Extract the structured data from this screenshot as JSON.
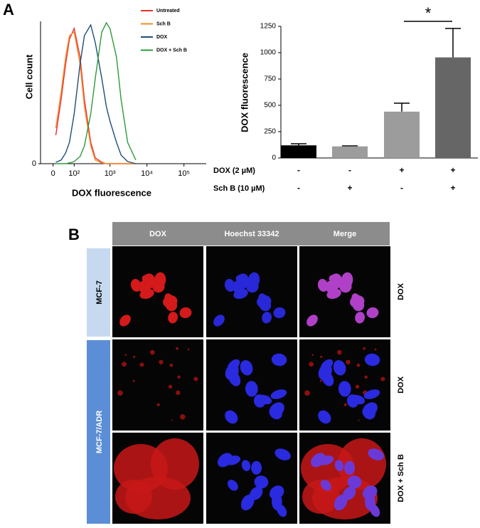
{
  "panel_labels": {
    "a": "A",
    "b": "B"
  },
  "chart_data": [
    {
      "type": "line",
      "xscale": "biexponential",
      "ylabel": "Cell count",
      "xlabel": "DOX fluorescence",
      "x": [
        10,
        30,
        50,
        70,
        100,
        150,
        200,
        300,
        400,
        600,
        800,
        1000,
        1500,
        2000,
        3000,
        5000
      ],
      "series": [
        {
          "name": "Untreated",
          "color": "#e8302a",
          "values": [
            40,
            90,
            140,
            175,
            190,
            150,
            90,
            30,
            8,
            2,
            0,
            0,
            0,
            0,
            0,
            0
          ]
        },
        {
          "name": "Sch B",
          "color": "#f58a2a",
          "values": [
            50,
            100,
            150,
            180,
            185,
            140,
            80,
            25,
            5,
            1,
            0,
            0,
            0,
            0,
            0,
            0
          ]
        },
        {
          "name": "DOX",
          "color": "#1f4e79",
          "values": [
            2,
            5,
            15,
            30,
            70,
            140,
            180,
            195,
            170,
            120,
            80,
            60,
            30,
            12,
            3,
            0
          ]
        },
        {
          "name": "DOX + Sch B",
          "color": "#2e9a3a",
          "values": [
            0,
            0,
            0,
            1,
            3,
            10,
            25,
            70,
            120,
            185,
            198,
            190,
            150,
            90,
            30,
            5
          ]
        }
      ],
      "xlim": [
        -50,
        400000
      ],
      "xticks": [
        0,
        {
          "value": 100,
          "label": "10²"
        },
        {
          "value": 1000,
          "label": "10³"
        },
        {
          "value": 10000,
          "label": "10⁴"
        },
        {
          "value": 100000,
          "label": "10⁵"
        }
      ],
      "ylim": [
        0,
        200
      ],
      "yticks": [
        0
      ]
    },
    {
      "type": "bar",
      "ylabel": "DOX fluorescence",
      "values": [
        120,
        110,
        440,
        955
      ],
      "errors": [
        15,
        5,
        80,
        275
      ],
      "colors": [
        "#000000",
        "#9c9c9c",
        "#9c9c9c",
        "#666666"
      ],
      "ylim": [
        0,
        1250
      ],
      "yticks": [
        0,
        250,
        500,
        750,
        1000,
        1250
      ],
      "annotation": "*",
      "conditions": [
        {
          "label": "DOX (2 µM)",
          "signs": [
            "-",
            "-",
            "+",
            "+"
          ]
        },
        {
          "label": "Sch B (10 µM)",
          "signs": [
            "-",
            "+",
            "-",
            "+"
          ]
        }
      ]
    }
  ],
  "microscopy": {
    "columns": [
      "DOX",
      "Hoechst 33342",
      "Merge"
    ],
    "cell_lines": [
      "MCF-7",
      "MCF-7/ADR"
    ],
    "treatments": [
      "DOX",
      "DOX",
      "DOX + Sch B"
    ]
  }
}
